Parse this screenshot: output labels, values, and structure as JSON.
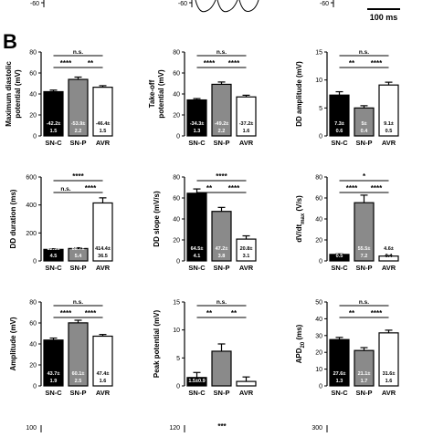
{
  "panel_label": "B",
  "scale_bar_label": "100 ms",
  "top_strip": {
    "left_tick": "-60",
    "middle_tick": "-60",
    "right_tick": "-60"
  },
  "bottom_strip": {
    "left_tick": "100",
    "middle_tick": "120",
    "middle_sig": "***",
    "right_tick": "300"
  },
  "colors": {
    "SN-C": "#000000",
    "SN-P": "#8a8a8a",
    "AVR": "#ffffff"
  },
  "chart_data": [
    {
      "type": "bar",
      "ylabel": "Maximum diastolic\npotential (mV)",
      "categories": [
        "SN-C",
        "SN-P",
        "AVR"
      ],
      "values": [
        42.2,
        53.9,
        46.4
      ],
      "errors": [
        1.5,
        2.2,
        1.5
      ],
      "bar_labels": [
        "-42.2±\n1.5",
        "-53.9±\n2.2",
        "-46.4±\n1.5"
      ],
      "ylim": [
        0,
        80
      ],
      "yticks": [
        "0",
        "20",
        "40",
        "60",
        "80"
      ],
      "significance": [
        {
          "from": 0,
          "to": 2,
          "label": "n.s."
        },
        {
          "from": 0,
          "to": 1,
          "label": "****"
        },
        {
          "from": 1,
          "to": 2,
          "label": "**"
        }
      ]
    },
    {
      "type": "bar",
      "ylabel": "Take-off\npotential (mV)",
      "categories": [
        "SN-C",
        "SN-P",
        "AVR"
      ],
      "values": [
        34.3,
        49.2,
        37.2
      ],
      "errors": [
        1.3,
        2.2,
        1.6
      ],
      "bar_labels": [
        "-34.3±\n1.3",
        "-49.2±\n2.2",
        "-37.2±\n1.6"
      ],
      "ylim": [
        0,
        80
      ],
      "yticks": [
        "0",
        "20",
        "40",
        "60",
        "80"
      ],
      "significance": [
        {
          "from": 0,
          "to": 2,
          "label": "n.s."
        },
        {
          "from": 0,
          "to": 1,
          "label": "****"
        },
        {
          "from": 1,
          "to": 2,
          "label": "****"
        }
      ]
    },
    {
      "type": "bar",
      "ylabel": "DD amplitude (mV)",
      "categories": [
        "SN-C",
        "SN-P",
        "AVR"
      ],
      "values": [
        7.3,
        5.0,
        9.1
      ],
      "errors": [
        0.6,
        0.4,
        0.5
      ],
      "bar_labels": [
        "7.3±\n0.6",
        "5±\n0.4",
        "9.1±\n0.5"
      ],
      "ylim": [
        0,
        15
      ],
      "yticks": [
        "0",
        "5",
        "10",
        "15"
      ],
      "significance": [
        {
          "from": 0,
          "to": 2,
          "label": "n.s."
        },
        {
          "from": 0,
          "to": 1,
          "label": "**"
        },
        {
          "from": 1,
          "to": 2,
          "label": "****"
        }
      ]
    },
    {
      "type": "bar",
      "ylabel": "DD duration (ms)",
      "categories": [
        "SN-C",
        "SN-P",
        "AVR"
      ],
      "values": [
        82.5,
        88.7,
        414.4
      ],
      "errors": [
        4.5,
        5.4,
        36.5
      ],
      "bar_labels": [
        "82.5±\n4.5",
        "88.7±\n5.4",
        "414.4±\n36.5"
      ],
      "ylim": [
        0,
        600
      ],
      "yticks": [
        "0",
        "200",
        "400",
        "600"
      ],
      "significance": [
        {
          "from": 0,
          "to": 2,
          "label": "****"
        },
        {
          "from": 0,
          "to": 1,
          "label": "n.s."
        },
        {
          "from": 1,
          "to": 2,
          "label": "****"
        }
      ]
    },
    {
      "type": "bar",
      "ylabel": "DD slope (mV/s)",
      "categories": [
        "SN-C",
        "SN-P",
        "AVR"
      ],
      "values": [
        64.5,
        47.2,
        20.8
      ],
      "errors": [
        4.1,
        3.8,
        3.1
      ],
      "bar_labels": [
        "64.5±\n4.1",
        "47.2±\n3.8",
        "20.8±\n3.1"
      ],
      "ylim": [
        0,
        80
      ],
      "yticks": [
        "0",
        "20",
        "40",
        "60",
        "80"
      ],
      "significance": [
        {
          "from": 0,
          "to": 2,
          "label": "****"
        },
        {
          "from": 0,
          "to": 1,
          "label": "**"
        },
        {
          "from": 1,
          "to": 2,
          "label": "****"
        }
      ]
    },
    {
      "type": "bar",
      "ylabel": "dV/dt_max (V/s)",
      "categories": [
        "SN-C",
        "SN-P",
        "AVR"
      ],
      "values": [
        6.2,
        55.5,
        4.6
      ],
      "errors": [
        0.5,
        7.2,
        0.4
      ],
      "bar_labels": [
        "6.2±\n0.5",
        "55.5±\n7.2",
        "4.6±\n0.4"
      ],
      "ylim": [
        0,
        80
      ],
      "yticks": [
        "0",
        "20",
        "40",
        "60",
        "80"
      ],
      "significance": [
        {
          "from": 0,
          "to": 2,
          "label": "*"
        },
        {
          "from": 0,
          "to": 1,
          "label": "****"
        },
        {
          "from": 1,
          "to": 2,
          "label": "****"
        }
      ]
    },
    {
      "type": "bar",
      "ylabel": "Amplitude (mV)",
      "categories": [
        "SN-C",
        "SN-P",
        "AVR"
      ],
      "values": [
        43.7,
        60.1,
        47.4
      ],
      "errors": [
        1.9,
        2.5,
        1.6
      ],
      "bar_labels": [
        "43.7±\n1.9",
        "60.1±\n2.5",
        "47.4±\n1.6"
      ],
      "ylim": [
        0,
        80
      ],
      "yticks": [
        "0",
        "20",
        "40",
        "60",
        "80"
      ],
      "significance": [
        {
          "from": 0,
          "to": 2,
          "label": "n.s."
        },
        {
          "from": 0,
          "to": 1,
          "label": "****"
        },
        {
          "from": 1,
          "to": 2,
          "label": "****"
        }
      ]
    },
    {
      "type": "bar",
      "ylabel": "Peak potential (mV)",
      "categories": [
        "SN-C",
        "SN-P",
        "AVR"
      ],
      "values": [
        1.5,
        6.2,
        0.8
      ],
      "errors": [
        0.9,
        1.3,
        0.8
      ],
      "bar_labels": [
        "1.5±0.9",
        "",
        ""
      ],
      "ylim": [
        0,
        15
      ],
      "yticks": [
        "0",
        "5",
        "10",
        "15"
      ],
      "significance": [
        {
          "from": 0,
          "to": 2,
          "label": "n.s."
        },
        {
          "from": 0,
          "to": 1,
          "label": "**"
        },
        {
          "from": 1,
          "to": 2,
          "label": "**"
        }
      ]
    },
    {
      "type": "bar",
      "ylabel": "APD_20 (ms)",
      "categories": [
        "SN-C",
        "SN-P",
        "AVR"
      ],
      "values": [
        27.6,
        21.1,
        31.6
      ],
      "errors": [
        1.3,
        1.7,
        1.6
      ],
      "bar_labels": [
        "27.6±\n1.3",
        "21.1±\n1.7",
        "31.6±\n1.6"
      ],
      "ylim": [
        0,
        50
      ],
      "yticks": [
        "0",
        "10",
        "20",
        "30",
        "40",
        "50"
      ],
      "significance": [
        {
          "from": 0,
          "to": 2,
          "label": "n.s."
        },
        {
          "from": 0,
          "to": 1,
          "label": "**"
        },
        {
          "from": 1,
          "to": 2,
          "label": "****"
        }
      ]
    }
  ]
}
